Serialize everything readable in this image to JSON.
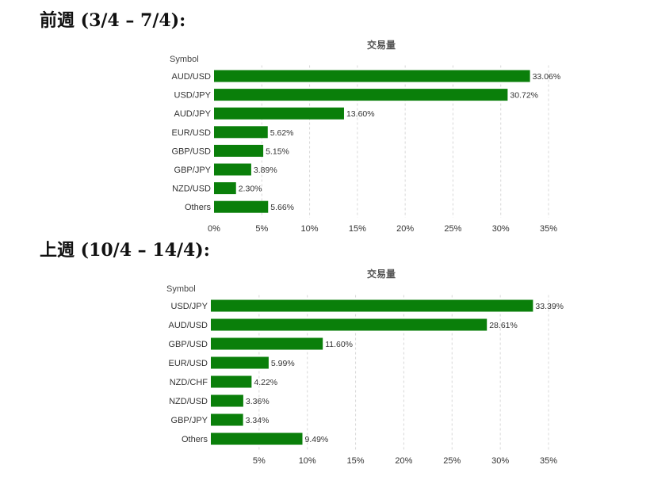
{
  "headings": [
    "前週 (3/4 – 7/4):",
    "上週 (10/4 – 14/4):"
  ],
  "chart_data": [
    {
      "type": "bar",
      "orientation": "horizontal",
      "title": "交易量",
      "ylabel": "Symbol",
      "categories": [
        "AUD/USD",
        "USD/JPY",
        "AUD/JPY",
        "EUR/USD",
        "GBP/USD",
        "GBP/JPY",
        "NZD/USD",
        "Others"
      ],
      "values": [
        33.06,
        30.72,
        13.6,
        5.62,
        5.15,
        3.89,
        2.3,
        5.66
      ],
      "value_labels": [
        "33.06%",
        "30.72%",
        "13.60%",
        "5.62%",
        "5.15%",
        "3.89%",
        "2.30%",
        "5.66%"
      ],
      "xlim": [
        0,
        35
      ],
      "xticks": [
        0,
        5,
        10,
        15,
        20,
        25,
        30,
        35
      ],
      "xtick_labels": [
        "0%",
        "5%",
        "10%",
        "15%",
        "20%",
        "25%",
        "30%",
        "35%"
      ],
      "grid": true,
      "bar_color": "#0a7f0a"
    },
    {
      "type": "bar",
      "orientation": "horizontal",
      "title": "交易量",
      "ylabel": "Symbol",
      "categories": [
        "USD/JPY",
        "AUD/USD",
        "GBP/USD",
        "EUR/USD",
        "NZD/CHF",
        "NZD/USD",
        "GBP/JPY",
        "Others"
      ],
      "values": [
        33.39,
        28.61,
        11.6,
        5.99,
        4.22,
        3.36,
        3.34,
        9.49
      ],
      "value_labels": [
        "33.39%",
        "28.61%",
        "11.60%",
        "5.99%",
        "4.22%",
        "3.36%",
        "3.34%",
        "9.49%"
      ],
      "xlim": [
        0,
        35
      ],
      "xticks": [
        5,
        10,
        15,
        20,
        25,
        30,
        35
      ],
      "xtick_labels": [
        "5%",
        "10%",
        "15%",
        "20%",
        "25%",
        "30%",
        "35%"
      ],
      "grid": true,
      "bar_color": "#0a7f0a"
    }
  ]
}
